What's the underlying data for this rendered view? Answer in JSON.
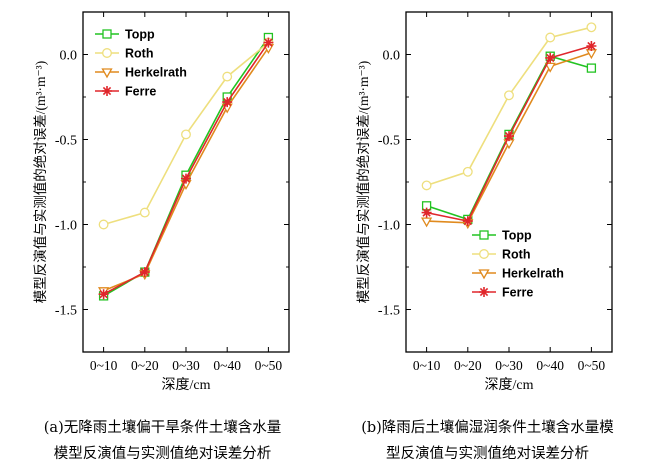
{
  "chart_data": [
    {
      "type": "line",
      "categories": [
        "0~10",
        "0~20",
        "0~30",
        "0~40",
        "0~50"
      ],
      "series": [
        {
          "name": "Topp",
          "color": "#22c322",
          "marker": "square",
          "values": [
            -1.42,
            -1.28,
            -0.71,
            -0.25,
            0.1
          ]
        },
        {
          "name": "Roth",
          "color": "#eedf7e",
          "marker": "circle",
          "values": [
            -1.0,
            -0.93,
            -0.47,
            -0.13,
            0.07
          ]
        },
        {
          "name": "Herkelrath",
          "color": "#e08a1e",
          "marker": "triangle-down",
          "values": [
            -1.39,
            -1.29,
            -0.76,
            -0.31,
            0.04
          ]
        },
        {
          "name": "Ferre",
          "color": "#e0262b",
          "marker": "star",
          "values": [
            -1.41,
            -1.28,
            -0.73,
            -0.28,
            0.07
          ]
        }
      ],
      "xlabel": "深度/cm",
      "ylabel": "模型反演值与实测值的绝对误差/(m³·m⁻³)",
      "yticks": [
        "0.0",
        "-0.5",
        "-1.0",
        "-1.5"
      ],
      "ylim": [
        -1.75,
        0.25
      ],
      "legend_position": "top-left",
      "grid": false,
      "caption_lines": [
        "(a)无降雨土壤偏干旱条件土壤含水量",
        "模型反演值与实测值绝对误差分析"
      ]
    },
    {
      "type": "line",
      "categories": [
        "0~10",
        "0~20",
        "0~30",
        "0~40",
        "0~50"
      ],
      "series": [
        {
          "name": "Topp",
          "color": "#22c322",
          "marker": "square",
          "values": [
            -0.89,
            -0.97,
            -0.47,
            -0.01,
            -0.08
          ]
        },
        {
          "name": "Roth",
          "color": "#eedf7e",
          "marker": "circle",
          "values": [
            -0.77,
            -0.69,
            -0.24,
            0.1,
            0.16
          ]
        },
        {
          "name": "Herkelrath",
          "color": "#e08a1e",
          "marker": "triangle-down",
          "values": [
            -0.98,
            -0.99,
            -0.52,
            -0.07,
            0.01
          ]
        },
        {
          "name": "Ferre",
          "color": "#e0262b",
          "marker": "star",
          "values": [
            -0.93,
            -0.98,
            -0.48,
            -0.02,
            0.05
          ]
        }
      ],
      "xlabel": "深度/cm",
      "ylabel": "模型反演值与实测值的绝对误差/(m³·m⁻³)",
      "yticks": [
        "0.0",
        "-0.5",
        "-1.0",
        "-1.5"
      ],
      "ylim": [
        -1.75,
        0.25
      ],
      "legend_position": "bottom-left",
      "grid": false,
      "caption_lines": [
        "(b)降雨后土壤偏湿润条件土壤含水量模",
        "型反演值与实测值绝对误差分析"
      ]
    }
  ]
}
